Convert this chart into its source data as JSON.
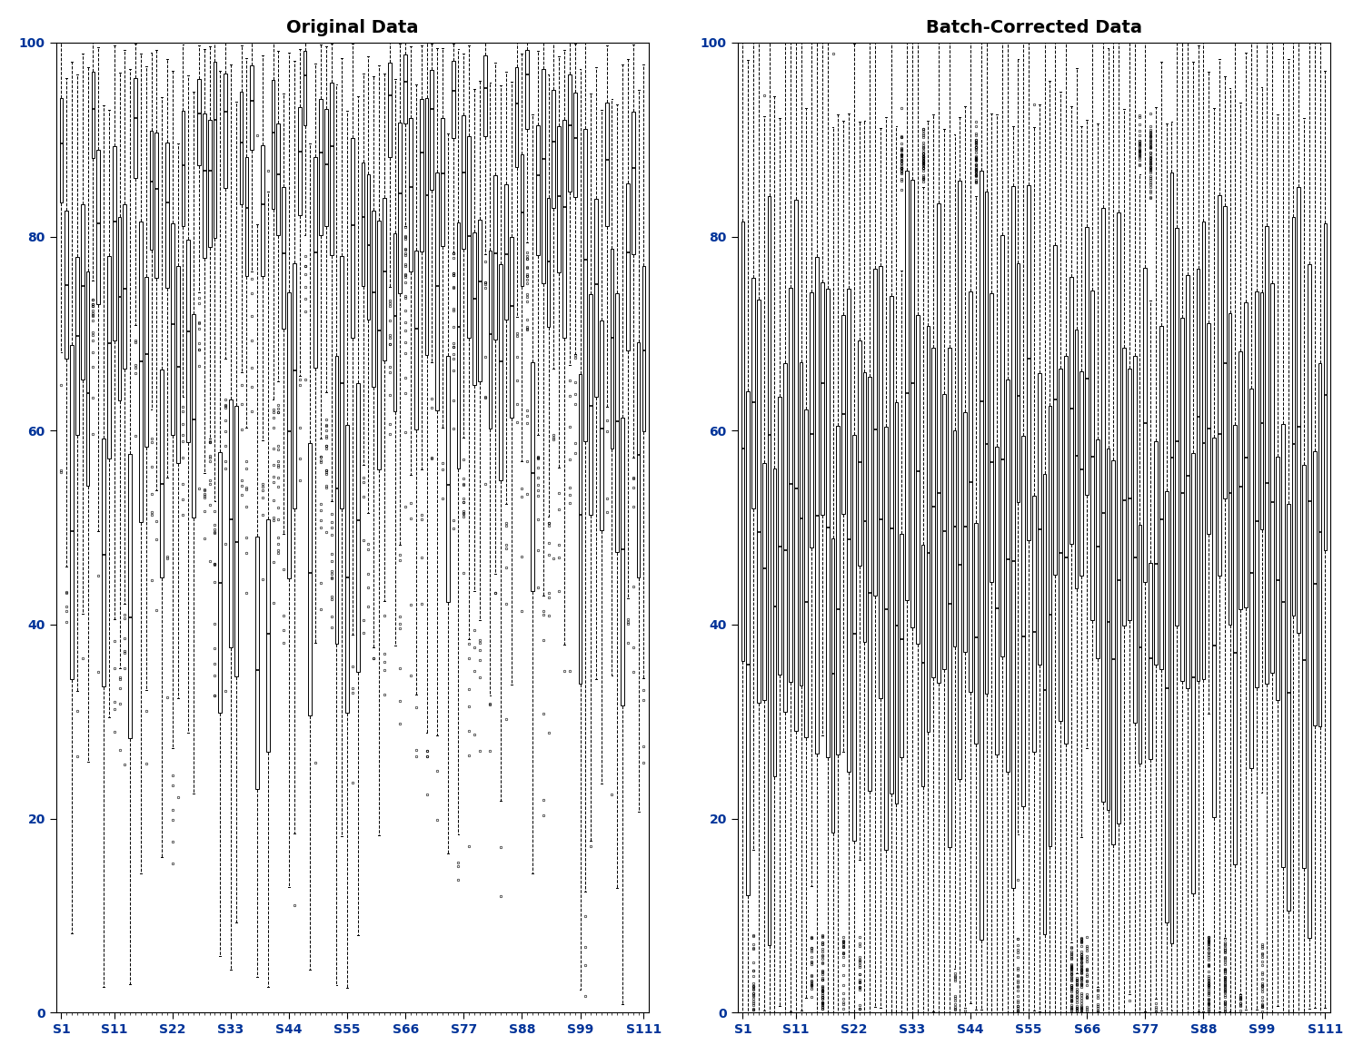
{
  "n_samples": 111,
  "ylim": [
    0,
    100
  ],
  "yticks": [
    0,
    20,
    40,
    60,
    80,
    100
  ],
  "xtick_labels": [
    "S1",
    "S11",
    "S22",
    "S33",
    "S44",
    "S55",
    "S66",
    "S77",
    "S88",
    "S99",
    "S111"
  ],
  "xtick_positions": [
    1,
    11,
    22,
    33,
    44,
    55,
    66,
    77,
    88,
    99,
    111
  ],
  "title_left": "Original Data",
  "title_right": "Batch-Corrected Data",
  "title_fontsize": 14,
  "figsize": [
    15.0,
    11.62
  ],
  "dpi": 100,
  "background_color": "#ffffff",
  "box_facecolor": "white",
  "box_edgecolor": "black",
  "median_color": "black",
  "whisker_color": "black",
  "outlier_facecolor": "none",
  "outlier_edgecolor": "black",
  "tick_label_color": "#003399",
  "seed": 12345
}
